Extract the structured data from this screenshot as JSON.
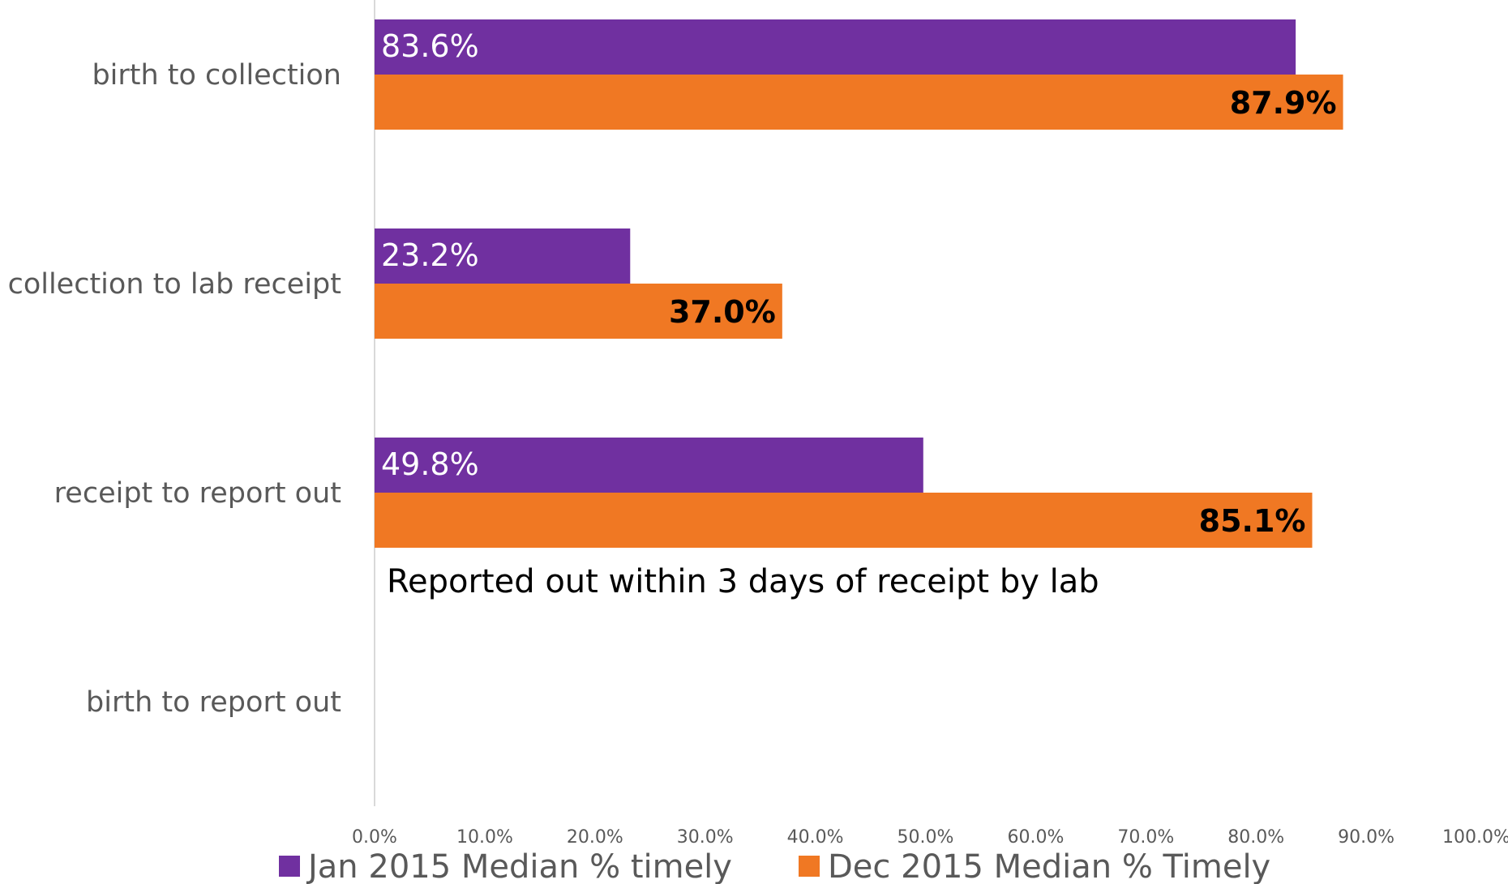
{
  "chart_data": {
    "type": "bar",
    "orientation": "horizontal",
    "title": "",
    "xlabel": "",
    "ylabel": "",
    "xlim": [
      0,
      100
    ],
    "grid": false,
    "legend_position": "bottom",
    "categories": [
      "birth to collection",
      "collection to lab receipt",
      "receipt to report out",
      "birth to report out"
    ],
    "series": [
      {
        "name": "Jan 2015 Median % timely",
        "color": "#7030a0",
        "values": [
          83.6,
          23.2,
          49.8,
          null
        ],
        "labels": [
          "83.6%",
          "23.2%",
          "49.8%",
          ""
        ]
      },
      {
        "name": "Dec 2015 Median % Timely",
        "color": "#f07823",
        "values": [
          87.9,
          37.0,
          85.1,
          null
        ],
        "labels": [
          "87.9%",
          "37.0%",
          "85.1%",
          ""
        ]
      }
    ],
    "ticks": [
      "0.0%",
      "10.0%",
      "20.0%",
      "30.0%",
      "40.0%",
      "50.0%",
      "60.0%",
      "70.0%",
      "80.0%",
      "90.0%",
      "100.0%"
    ],
    "annotation": "Reported out within 3 days of receipt by lab"
  }
}
